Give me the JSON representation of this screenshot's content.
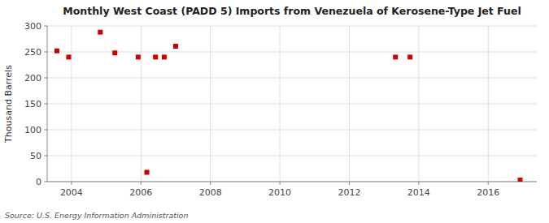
{
  "chart_data": {
    "type": "scatter",
    "title": "Monthly West Coast (PADD 5) Imports from Venezuela of Kerosene-Type Jet Fuel",
    "y_label": "Thousand Barrels",
    "annotations": [
      "Source: U.S. Energy Information Administration"
    ],
    "x": [
      2003.58,
      2003.92,
      2004.83,
      2005.25,
      2005.92,
      2006.17,
      2006.42,
      2006.67,
      2007.0,
      2013.33,
      2013.75,
      2016.92
    ],
    "values": [
      252,
      240,
      288,
      248,
      240,
      18,
      240,
      240,
      261,
      240,
      240,
      3
    ],
    "color": "#cc0000",
    "marker": "square",
    "xlim": [
      2003.3,
      2017.4
    ],
    "ylim": [
      0,
      300
    ],
    "xticks": [
      2004,
      2006,
      2008,
      2010,
      2012,
      2014,
      2016
    ],
    "yticks": [
      0,
      50,
      100,
      150,
      200,
      250,
      300
    ],
    "grid": true
  }
}
